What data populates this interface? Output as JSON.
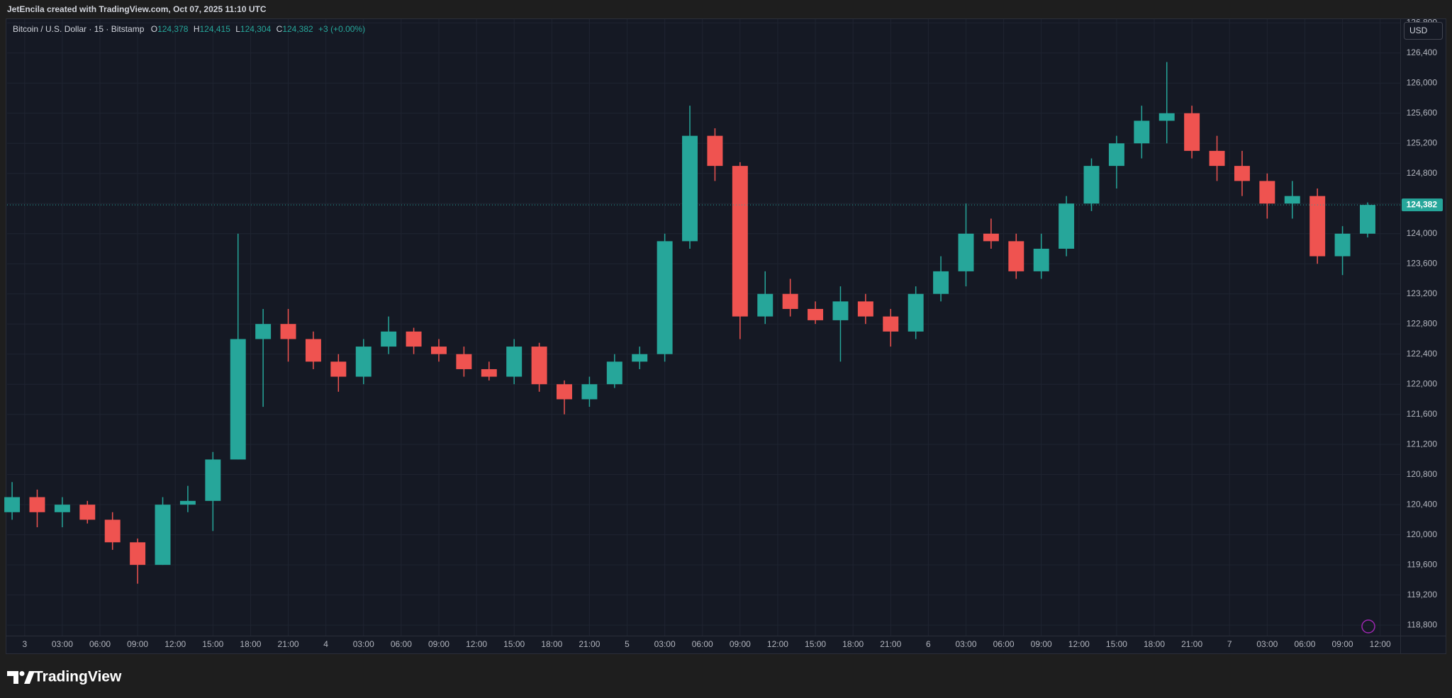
{
  "header": {
    "attribution": "JetEncila created with TradingView.com, Oct 07, 2025 11:10 UTC"
  },
  "chart_data": {
    "type": "candlestick",
    "symbol": "Bitcoin / U.S. Dollar · 15 · Bitstamp",
    "ohlc_legend": [
      {
        "key": "O",
        "value": "124,378"
      },
      {
        "key": "H",
        "value": "124,415"
      },
      {
        "key": "L",
        "value": "124,304"
      },
      {
        "key": "C",
        "value": "124,382"
      }
    ],
    "change": "+3 (+0.00%)",
    "currency": "USD",
    "x": [
      -1,
      1,
      3,
      5,
      7,
      9,
      11,
      13,
      15,
      17,
      19,
      21,
      23,
      25,
      27,
      29,
      31,
      33,
      35,
      37,
      39,
      41,
      43,
      45,
      47,
      49,
      51,
      53,
      55,
      57,
      59,
      61,
      63,
      65,
      67,
      69,
      71,
      73,
      75,
      77,
      79,
      81,
      83,
      85,
      87,
      89,
      91,
      93,
      95,
      97,
      99,
      101,
      103,
      105,
      107
    ],
    "open": [
      120300,
      120500,
      120300,
      120400,
      120200,
      119900,
      119600,
      120400,
      120450,
      121000,
      122600,
      122800,
      122600,
      122300,
      122100,
      122500,
      122700,
      122500,
      122400,
      122200,
      122100,
      122500,
      122000,
      121800,
      122000,
      122300,
      122400,
      123900,
      125300,
      124900,
      122900,
      123200,
      123000,
      122850,
      123100,
      122900,
      122700,
      123200,
      123500,
      124000,
      123900,
      123500,
      123800,
      124400,
      124900,
      125200,
      125500,
      125600,
      125100,
      124900,
      124700,
      124400,
      124500,
      123700,
      124000
    ],
    "high": [
      120700,
      120600,
      120500,
      120450,
      120300,
      119950,
      120500,
      120650,
      121100,
      124000,
      123000,
      123000,
      122700,
      122400,
      122600,
      122900,
      122750,
      122600,
      122500,
      122300,
      122600,
      122550,
      122050,
      122100,
      122400,
      122500,
      124000,
      125700,
      125400,
      124950,
      123500,
      123400,
      123100,
      123300,
      123200,
      123000,
      123300,
      123700,
      124400,
      124200,
      124000,
      124000,
      124500,
      125000,
      125300,
      125700,
      126280,
      125700,
      125300,
      125100,
      124800,
      124700,
      124600,
      124100,
      124415
    ],
    "low": [
      120200,
      120100,
      120100,
      120150,
      119800,
      119350,
      119600,
      120300,
      120050,
      121000,
      121700,
      122300,
      122200,
      121900,
      122000,
      122400,
      122400,
      122300,
      122100,
      122050,
      122000,
      121900,
      121600,
      121700,
      121950,
      122200,
      122300,
      123800,
      124700,
      122600,
      122800,
      122900,
      122800,
      122300,
      122800,
      122500,
      122600,
      123100,
      123300,
      123800,
      123400,
      123400,
      123700,
      124300,
      124600,
      125000,
      125200,
      125000,
      124700,
      124500,
      124200,
      124200,
      123600,
      123450,
      123950
    ],
    "close": [
      120500,
      120300,
      120400,
      120200,
      119900,
      119600,
      120400,
      120450,
      121000,
      122600,
      122800,
      122600,
      122300,
      122100,
      122500,
      122700,
      122500,
      122400,
      122200,
      122100,
      122500,
      122000,
      121800,
      122000,
      122300,
      122400,
      123900,
      125300,
      124900,
      122900,
      123200,
      123000,
      122850,
      123100,
      122900,
      122700,
      123200,
      123500,
      124000,
      123900,
      123500,
      123800,
      124400,
      124900,
      125200,
      125500,
      125600,
      125100,
      124900,
      124700,
      124400,
      124500,
      123700,
      124000,
      124382
    ],
    "up_color": "#26a69a",
    "down_color": "#ef5350",
    "grid": true,
    "xlim": [
      -1.4,
      109.6
    ],
    "xticks": [
      {
        "value": 0,
        "label": "3"
      },
      {
        "value": 3,
        "label": "03:00"
      },
      {
        "value": 6,
        "label": "06:00"
      },
      {
        "value": 9,
        "label": "09:00"
      },
      {
        "value": 12,
        "label": "12:00"
      },
      {
        "value": 15,
        "label": "15:00"
      },
      {
        "value": 18,
        "label": "18:00"
      },
      {
        "value": 21,
        "label": "21:00"
      },
      {
        "value": 24,
        "label": "4"
      },
      {
        "value": 27,
        "label": "03:00"
      },
      {
        "value": 30,
        "label": "06:00"
      },
      {
        "value": 33,
        "label": "09:00"
      },
      {
        "value": 36,
        "label": "12:00"
      },
      {
        "value": 39,
        "label": "15:00"
      },
      {
        "value": 42,
        "label": "18:00"
      },
      {
        "value": 45,
        "label": "21:00"
      },
      {
        "value": 48,
        "label": "5"
      },
      {
        "value": 51,
        "label": "03:00"
      },
      {
        "value": 54,
        "label": "06:00"
      },
      {
        "value": 57,
        "label": "09:00"
      },
      {
        "value": 60,
        "label": "12:00"
      },
      {
        "value": 63,
        "label": "15:00"
      },
      {
        "value": 66,
        "label": "18:00"
      },
      {
        "value": 69,
        "label": "21:00"
      },
      {
        "value": 72,
        "label": "6"
      },
      {
        "value": 75,
        "label": "03:00"
      },
      {
        "value": 78,
        "label": "06:00"
      },
      {
        "value": 81,
        "label": "09:00"
      },
      {
        "value": 84,
        "label": "12:00"
      },
      {
        "value": 87,
        "label": "15:00"
      },
      {
        "value": 90,
        "label": "18:00"
      },
      {
        "value": 93,
        "label": "21:00"
      },
      {
        "value": 96,
        "label": "7"
      },
      {
        "value": 99,
        "label": "03:00"
      },
      {
        "value": 102,
        "label": "06:00"
      },
      {
        "value": 105,
        "label": "09:00"
      },
      {
        "value": 108,
        "label": "12:00"
      }
    ],
    "ylim": [
      118660,
      126850
    ],
    "yticks": [
      {
        "value": 118800,
        "label": "118,800"
      },
      {
        "value": 119200,
        "label": "119,200"
      },
      {
        "value": 119600,
        "label": "119,600"
      },
      {
        "value": 120000,
        "label": "120,000"
      },
      {
        "value": 120400,
        "label": "120,400"
      },
      {
        "value": 120800,
        "label": "120,800"
      },
      {
        "value": 121200,
        "label": "121,200"
      },
      {
        "value": 121600,
        "label": "121,600"
      },
      {
        "value": 122000,
        "label": "122,000"
      },
      {
        "value": 122400,
        "label": "122,400"
      },
      {
        "value": 122800,
        "label": "122,800"
      },
      {
        "value": 123200,
        "label": "123,200"
      },
      {
        "value": 123600,
        "label": "123,600"
      },
      {
        "value": 124000,
        "label": "124,000"
      },
      {
        "value": 124400,
        "label": "124,400"
      },
      {
        "value": 124800,
        "label": "124,800"
      },
      {
        "value": 125200,
        "label": "125,200"
      },
      {
        "value": 125600,
        "label": "125,600"
      },
      {
        "value": 126000,
        "label": "126,000"
      },
      {
        "value": 126400,
        "label": "126,400"
      },
      {
        "value": 126800,
        "label": "126,800"
      }
    ],
    "last_price": {
      "value": 124382,
      "label": "124,382"
    },
    "last_price_color": "#26a69a"
  },
  "footer": {
    "brand": "TradingView"
  }
}
